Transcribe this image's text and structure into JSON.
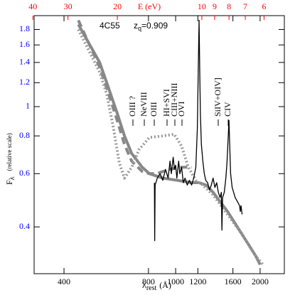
{
  "chart_data": {
    "type": "line",
    "quasar": "4C55",
    "redshift_symbol": "z",
    "redshift_subscript": "q",
    "redshift_text": "=0.909",
    "xlabel_symbol": "λ",
    "xlabel_subscript": "rest",
    "xlabel_unit": "(Å)",
    "ylabel_symbol": "F",
    "ylabel_subscript": "λ",
    "ylabel_note": "(relative scale)",
    "x2label": "E (eV)",
    "xscale": "log",
    "yscale": "log",
    "xlim": [
      313,
      2440
    ],
    "xticks": [
      400,
      800,
      1000,
      1200,
      1600,
      2000
    ],
    "x2lim": [
      39.6,
      5.08
    ],
    "x2ticks": [
      40,
      30,
      20,
      10,
      9,
      8,
      7,
      6
    ],
    "x2color": "#ff0000",
    "ylim": [
      0.28,
      2.0
    ],
    "yticks": [
      0.4,
      0.6,
      0.8,
      1,
      1.2,
      1.4,
      1.6,
      1.8
    ],
    "ycolor": "#0000ff",
    "annotations": [
      "OIII ?",
      "NeVIII",
      "OIII",
      "HI+SVI",
      "CIII+NIII",
      "OVI",
      "SiIV+OIV]",
      "CIV"
    ],
    "series": [
      {
        "color": "#000000",
        "style": "solid",
        "width": 1.3,
        "x": [
          840,
          842,
          845,
          860,
          880,
          900,
          920,
          940,
          955,
          965,
          980,
          990,
          1000,
          1010,
          1025,
          1035,
          1050,
          1065,
          1080,
          1100,
          1120,
          1140,
          1160,
          1180,
          1195,
          1205,
          1212,
          1218,
          1225,
          1235,
          1250,
          1265,
          1280,
          1300,
          1320,
          1340,
          1360,
          1380,
          1400,
          1420,
          1440,
          1455,
          1462,
          1470,
          1490,
          1510,
          1525,
          1540,
          1549,
          1558,
          1570,
          1590,
          1610,
          1630,
          1650,
          1670,
          1690,
          1700,
          1710,
          1725
        ],
        "values": [
          0.56,
          0.36,
          0.55,
          0.58,
          0.6,
          0.57,
          0.62,
          0.58,
          0.66,
          0.6,
          0.68,
          0.62,
          0.64,
          0.58,
          0.66,
          0.6,
          0.63,
          0.56,
          0.58,
          0.55,
          0.57,
          0.55,
          0.58,
          0.63,
          0.85,
          1.4,
          1.93,
          1.35,
          0.95,
          0.75,
          0.66,
          0.6,
          0.57,
          0.56,
          0.53,
          0.55,
          0.58,
          0.54,
          0.56,
          0.52,
          0.5,
          0.52,
          0.39,
          0.5,
          0.52,
          0.58,
          0.66,
          0.8,
          0.9,
          0.75,
          0.6,
          0.54,
          0.52,
          0.5,
          0.49,
          0.48,
          0.47,
          0.45,
          0.47,
          0.44
        ]
      },
      {
        "color": "#888888",
        "style": "solid",
        "width": 4,
        "x": [
          450,
          536,
          568,
          619,
          657,
          697,
          760,
          806,
          900,
          1017,
          1142,
          1211,
          1285,
          1361,
          1450,
          1530,
          1718,
          1931,
          2000
        ],
        "values": [
          1.87,
          1.4,
          1.2,
          0.95,
          0.8,
          0.7,
          0.63,
          0.6,
          0.58,
          0.57,
          0.56,
          0.56,
          0.55,
          0.52,
          0.48,
          0.45,
          0.38,
          0.32,
          0.3
        ]
      },
      {
        "color": "#888888",
        "style": "dashed",
        "width": 4,
        "x": [
          450,
          536,
          568,
          619,
          657,
          697,
          760,
          806,
          854,
          950,
          1050,
          1142
        ],
        "values": [
          1.93,
          1.35,
          1.15,
          0.9,
          0.75,
          0.66,
          0.61,
          0.6,
          0.6,
          0.62,
          0.63,
          0.63
        ]
      },
      {
        "color": "#999999",
        "style": "dotted",
        "width": 4,
        "x": [
          450,
          536,
          568,
          600,
          630,
          657,
          697,
          740,
          806,
          900,
          988,
          1050,
          1110,
          1180,
          1250,
          1361,
          1530,
          1718,
          1931,
          2050
        ],
        "values": [
          1.8,
          1.3,
          1.1,
          0.85,
          0.65,
          0.58,
          0.63,
          0.72,
          0.79,
          0.8,
          0.81,
          0.74,
          0.63,
          0.57,
          0.55,
          0.51,
          0.44,
          0.38,
          0.32,
          0.3
        ]
      }
    ]
  }
}
